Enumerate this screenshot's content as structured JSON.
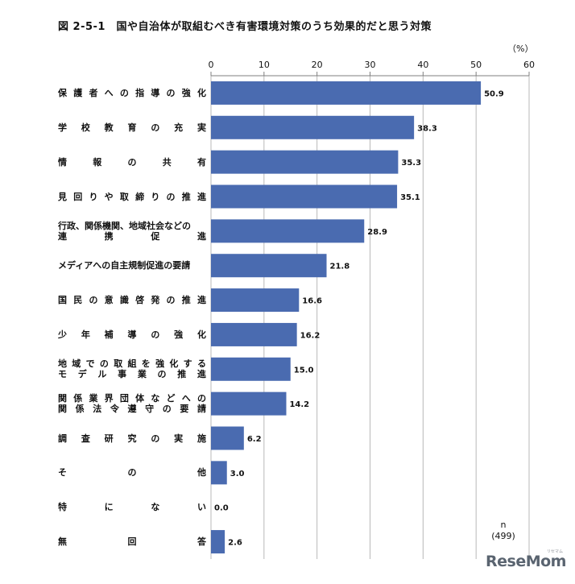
{
  "title": "図 2-5-1　国や自治体が取組むべき有害環境対策のうち効果的だと思う対策",
  "unit": "（%）",
  "sample": {
    "label": "n",
    "value": "(499)"
  },
  "logo": {
    "text": "ReseMom",
    "small": "リセマム"
  },
  "colors": {
    "bar": "#4a6bb0",
    "grid": "#b9b9b9",
    "axis": "#7f7f7f"
  },
  "chart_data": {
    "type": "bar",
    "orientation": "horizontal",
    "xlim": [
      0,
      60
    ],
    "xticks": [
      0,
      10,
      20,
      30,
      40,
      50,
      60
    ],
    "grid": true,
    "categories": [
      "保護者への指導の強化",
      "学校教育の充実",
      "情報の共有",
      "見回りや取締りの推進",
      "行政、関係機関、地域社会などの連携促進",
      "メディアへの自主規制促進の要請",
      "国民の意識啓発の推進",
      "少年補導の強化",
      "地域での取組を強化するモデル事業の推進",
      "関係業界団体などへの関係法令遵守の要請",
      "調査研究の実施",
      "その他",
      "特にない",
      "無回答"
    ],
    "category_lines": [
      [
        "保　護　者　へ　の　指　導　の　強　化"
      ],
      [
        "学　校　教　育　の　充　実"
      ],
      [
        "情　報　の　共　有"
      ],
      [
        "見　回　り　や　取　締　り　の　推　進"
      ],
      [
        "行政、関係機関、地域社会などの",
        "連　携　促　進"
      ],
      [
        "メディアへの自主規制促進の要請"
      ],
      [
        "国　民　の　意　識　啓　発　の　推　進"
      ],
      [
        "少　年　補　導　の　強　化"
      ],
      [
        "地　域　で　の　取　組　を　強　化　す　る",
        "モ　デ　ル　事　業　の　推　進"
      ],
      [
        "関　係　業　界　団　体　な　ど　へ　の",
        "関　係　法　令　遵　守　の　要　請"
      ],
      [
        "調　査　研　究　の　実　施"
      ],
      [
        "そ　の　他"
      ],
      [
        "特　に　な　い"
      ],
      [
        "無　回　答"
      ]
    ],
    "values": [
      50.9,
      38.3,
      35.3,
      35.1,
      28.9,
      21.8,
      16.6,
      16.2,
      15.0,
      14.2,
      6.2,
      3.0,
      0.0,
      2.6
    ],
    "value_labels": [
      "50.9",
      "38.3",
      "35.3",
      "35.1",
      "28.9",
      "21.8",
      "16.6",
      "16.2",
      "15.0",
      "14.2",
      "6.2",
      "3.0",
      "0.0",
      "2.6"
    ]
  }
}
